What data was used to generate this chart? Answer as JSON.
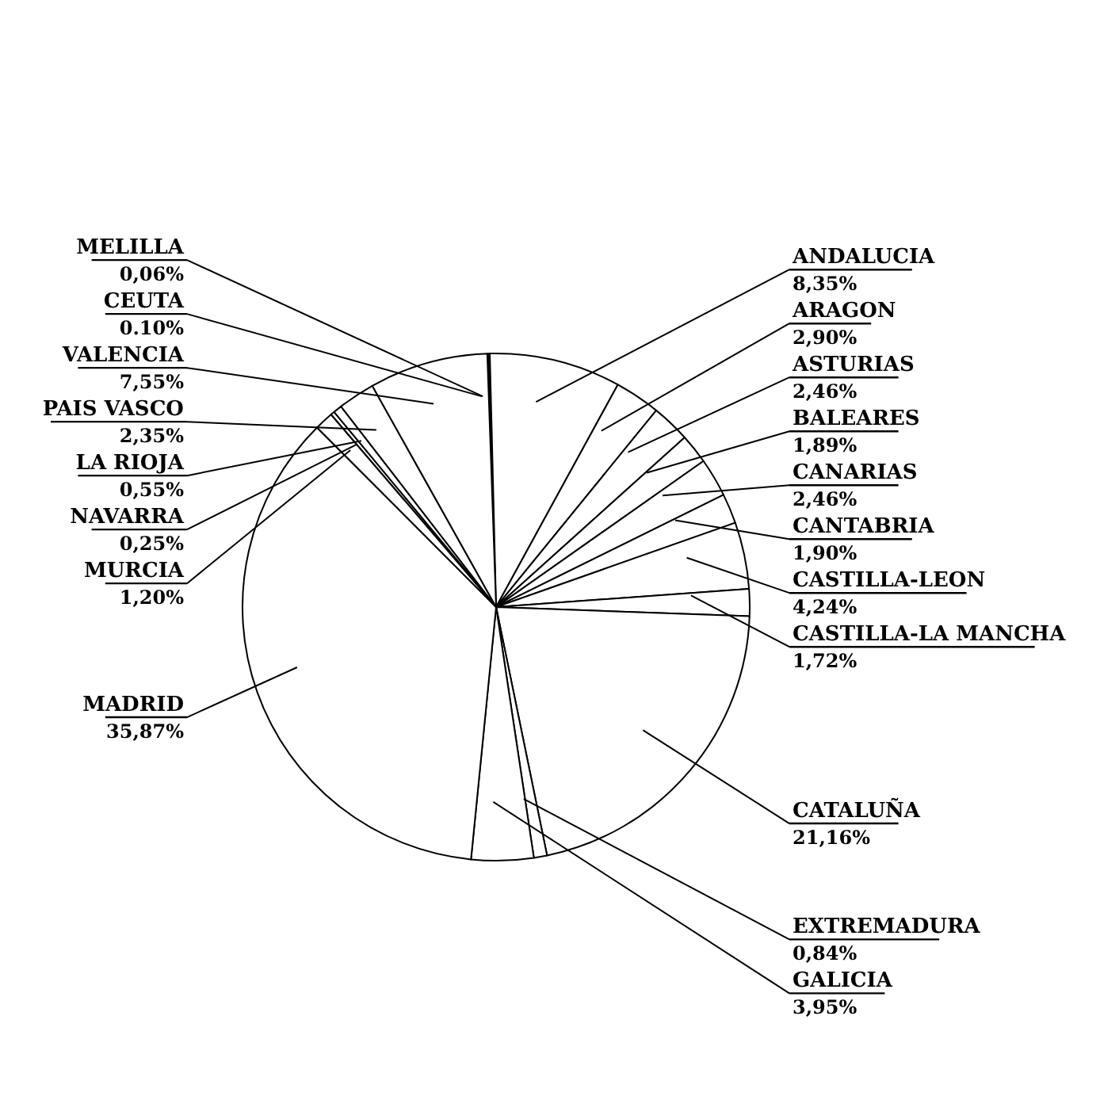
{
  "chart_data": {
    "type": "pie",
    "categories": [
      "CEUTA",
      "MELILLA",
      "ANDALUCIA",
      "ARAGON",
      "ASTURIAS",
      "BALEARES",
      "CANARIAS",
      "CANTABRIA",
      "CASTILLA-LEON",
      "CASTILLA-LA MANCHA",
      "CATALUÑA",
      "EXTREMADURA",
      "GALICIA",
      "MADRID",
      "MURCIA",
      "NAVARRA",
      "LA RIOJA",
      "PAIS VASCO",
      "VALENCIA"
    ],
    "values": [
      0.1,
      0.06,
      8.35,
      2.9,
      2.46,
      1.89,
      2.46,
      1.9,
      4.24,
      1.72,
      21.16,
      0.84,
      3.95,
      35.87,
      1.2,
      0.25,
      0.55,
      2.35,
      7.55
    ],
    "value_labels": [
      "0.10%",
      "0,06%",
      "8,35%",
      "2,90%",
      "2,46%",
      "1,89%",
      "2,46%",
      "1,90%",
      "4,24%",
      "1,72%",
      "21,16%",
      "0,84%",
      "3,95%",
      "35,87%",
      "1,20%",
      "0,25%",
      "0,55%",
      "2,35%",
      "7,55%"
    ],
    "colors": [
      "#ffffff",
      "#ffffff",
      "#ffffff",
      "#ffffff",
      "#ffffff",
      "#ffffff",
      "#ffffff",
      "#ffffff",
      "#ffffff",
      "#ffffff",
      "#ffffff",
      "#ffffff",
      "#ffffff",
      "#ffffff",
      "#ffffff",
      "#ffffff",
      "#ffffff",
      "#ffffff",
      "#ffffff"
    ],
    "legend": false
  }
}
